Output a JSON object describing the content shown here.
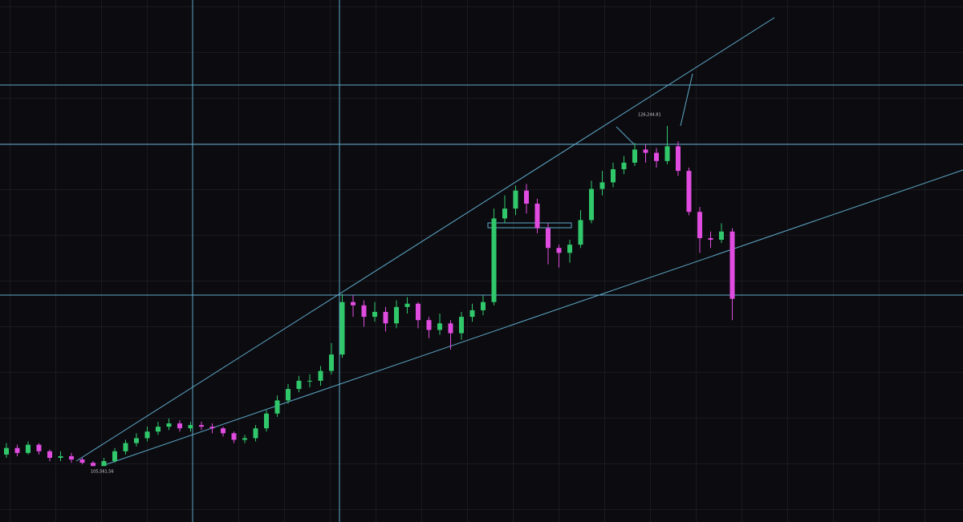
{
  "chart_data": {
    "type": "candlestick",
    "up_color": "#31c76b",
    "down_color": "#e04be0",
    "ylim": [
      102088,
      133920
    ],
    "open": [
      106200,
      106600,
      106300,
      106800,
      106400,
      106000,
      106100,
      105900,
      105700,
      105500,
      105800,
      106400,
      106900,
      107200,
      107600,
      107900,
      108100,
      107800,
      108000,
      107900,
      107800,
      107500,
      107100,
      107200,
      107800,
      108700,
      109500,
      110200,
      110700,
      110700,
      111300,
      112300,
      115500,
      115300,
      114600,
      114900,
      114200,
      115200,
      115400,
      114400,
      113800,
      114200,
      113600,
      114600,
      115000,
      115500,
      120600,
      121200,
      122300,
      121500,
      120000,
      118800,
      118500,
      119000,
      120500,
      122400,
      122800,
      123600,
      124000,
      124800,
      124600,
      124100,
      125000,
      123500,
      121000,
      119400,
      119300,
      119800
    ],
    "high": [
      106900,
      106800,
      107000,
      106900,
      106500,
      106400,
      106300,
      106000,
      105800,
      106000,
      106600,
      107100,
      107500,
      107900,
      108200,
      108400,
      108300,
      108200,
      108200,
      108100,
      107900,
      107600,
      107400,
      108000,
      108900,
      109800,
      110500,
      111000,
      111100,
      111600,
      113000,
      116000,
      115900,
      115600,
      115500,
      115200,
      115600,
      115800,
      115500,
      114600,
      114800,
      114400,
      114900,
      115400,
      115900,
      121200,
      122000,
      122600,
      122700,
      121800,
      120300,
      119000,
      119300,
      121100,
      122900,
      123500,
      124000,
      124400,
      125200,
      125100,
      124900,
      126244,
      125300,
      123700,
      121300,
      119800,
      120300,
      120000
    ],
    "low": [
      106000,
      106100,
      106200,
      106200,
      105800,
      105800,
      105700,
      105600,
      105561,
      105600,
      105700,
      106200,
      106700,
      107000,
      107400,
      107700,
      107600,
      107600,
      107700,
      107500,
      107300,
      106900,
      106900,
      107000,
      107600,
      108500,
      109300,
      110000,
      110300,
      110400,
      111100,
      112100,
      114600,
      114000,
      114300,
      113700,
      113900,
      114800,
      113900,
      113300,
      113500,
      112600,
      113200,
      114300,
      114700,
      115300,
      120300,
      120800,
      120900,
      119700,
      117800,
      117600,
      117900,
      118800,
      120300,
      122000,
      122500,
      123300,
      123800,
      124000,
      123700,
      123900,
      123200,
      120800,
      118500,
      118800,
      119100,
      114400
    ],
    "close": [
      106600,
      106300,
      106800,
      106400,
      106000,
      106100,
      105900,
      105700,
      105500,
      105800,
      106400,
      106900,
      107200,
      107600,
      107900,
      108100,
      107800,
      108000,
      107900,
      107800,
      107500,
      107100,
      107200,
      107800,
      108700,
      109500,
      110200,
      110700,
      110700,
      111300,
      112300,
      115500,
      115300,
      114600,
      114900,
      114200,
      115200,
      115400,
      114400,
      113800,
      114200,
      113600,
      114600,
      115000,
      115500,
      120600,
      121200,
      122300,
      121500,
      120000,
      118800,
      118500,
      119000,
      120500,
      122400,
      122800,
      123600,
      124000,
      124800,
      124600,
      124100,
      125000,
      123500,
      121000,
      119400,
      119300,
      119800,
      115700
    ],
    "annotations": [
      "126,244.81",
      "105,561.56"
    ]
  }
}
